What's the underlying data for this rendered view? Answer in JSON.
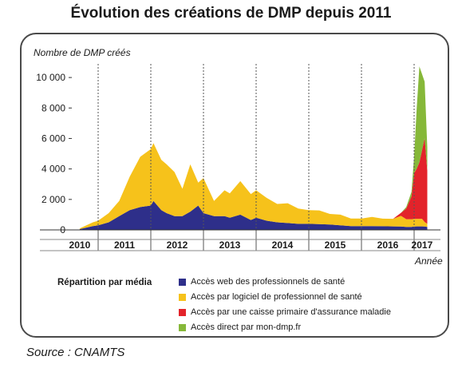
{
  "title": "Évolution des créations de DMP depuis 2011",
  "source": "Source : CNAMTS",
  "chart_data": {
    "type": "area",
    "stacked": true,
    "ylabel": "Nombre de DMP créés",
    "xlabel": "Année",
    "ylim": [
      0,
      11000
    ],
    "yticks": [
      0,
      2000,
      4000,
      6000,
      8000,
      10000
    ],
    "ytick_labels": [
      "0",
      "2 000",
      "4 000",
      "6 000",
      "8 000",
      "10 000"
    ],
    "x_tick_labels": [
      "2010",
      "2011",
      "2012",
      "2013",
      "2014",
      "2015",
      "2016",
      "2017"
    ],
    "grid": false,
    "legend_title": "Répartition par média",
    "legend_position": "bottom",
    "x": [
      2010.65,
      2010.9,
      2011.0,
      2011.2,
      2011.4,
      2011.6,
      2011.8,
      2012.0,
      2012.05,
      2012.2,
      2012.3,
      2012.45,
      2012.6,
      2012.75,
      2012.9,
      2013.0,
      2013.2,
      2013.4,
      2013.5,
      2013.7,
      2013.9,
      2014.0,
      2014.2,
      2014.4,
      2014.6,
      2014.8,
      2015.0,
      2015.2,
      2015.4,
      2015.6,
      2015.8,
      2016.0,
      2016.2,
      2016.4,
      2016.6,
      2016.75,
      2016.85,
      2016.95,
      2017.0,
      2017.05,
      2017.1,
      2017.15,
      2017.2,
      2017.25
    ],
    "series": [
      {
        "name": "Accès web des professionnels de santé",
        "color": "#2e2f8a",
        "values": [
          50,
          250,
          300,
          500,
          900,
          1300,
          1500,
          1600,
          1900,
          1300,
          1100,
          900,
          900,
          1200,
          1600,
          1100,
          900,
          900,
          800,
          1000,
          650,
          800,
          600,
          500,
          450,
          400,
          400,
          380,
          350,
          300,
          250,
          250,
          250,
          240,
          230,
          220,
          200,
          200,
          220,
          230,
          230,
          230,
          220,
          200
        ]
      },
      {
        "name": "Accès par logiciel de professionnel de santé",
        "color": "#f6c21b",
        "values": [
          50,
          250,
          300,
          600,
          1000,
          2200,
          3300,
          3700,
          3800,
          3300,
          3200,
          2900,
          1800,
          3100,
          1500,
          2300,
          1000,
          1700,
          1600,
          2200,
          1700,
          1800,
          1500,
          1200,
          1300,
          1000,
          900,
          900,
          700,
          700,
          500,
          500,
          600,
          500,
          500,
          700,
          500,
          500,
          500,
          500,
          500,
          500,
          300,
          200
        ]
      },
      {
        "name": "Accès par une caisse primaire d'assurance maladie",
        "color": "#e3232a",
        "values": [
          0,
          0,
          0,
          0,
          0,
          0,
          0,
          0,
          0,
          0,
          0,
          0,
          0,
          0,
          0,
          0,
          0,
          0,
          0,
          0,
          0,
          0,
          0,
          0,
          0,
          0,
          0,
          0,
          0,
          0,
          0,
          0,
          0,
          0,
          0,
          200,
          700,
          1500,
          3000,
          3300,
          3700,
          4500,
          5500,
          3500
        ]
      },
      {
        "name": "Accès direct par mon-dmp.fr",
        "color": "#86b839",
        "values": [
          0,
          0,
          0,
          0,
          0,
          0,
          0,
          0,
          0,
          0,
          0,
          0,
          0,
          0,
          0,
          0,
          0,
          0,
          0,
          0,
          0,
          0,
          0,
          0,
          0,
          0,
          0,
          0,
          0,
          0,
          0,
          0,
          0,
          0,
          0,
          0,
          100,
          300,
          1100,
          4000,
          6300,
          5000,
          3700,
          1500
        ]
      }
    ]
  }
}
